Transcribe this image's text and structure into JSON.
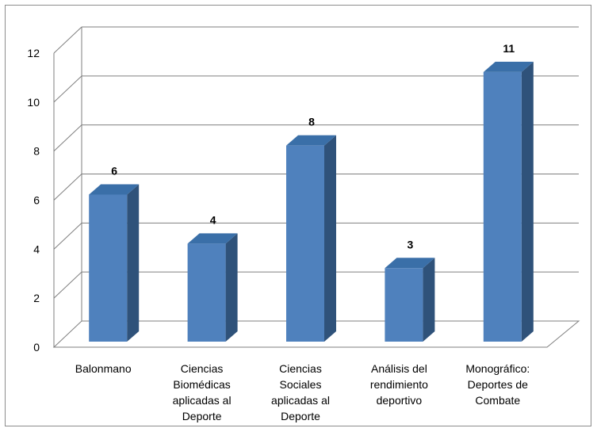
{
  "chart_data": {
    "type": "bar",
    "categories": [
      "Balonmano",
      "Ciencias Biomédicas aplicadas al Deporte",
      "Ciencias Sociales aplicadas al Deporte",
      "Análisis del rendimiento deportivo",
      "Monográfico: Deportes de Combate"
    ],
    "category_lines": [
      [
        "Balonmano"
      ],
      [
        "Ciencias",
        "Biomédicas",
        "aplicadas al",
        "Deporte"
      ],
      [
        "Ciencias",
        "Sociales",
        "aplicadas al",
        "Deporte"
      ],
      [
        "Análisis del",
        "rendimiento",
        "deportivo"
      ],
      [
        "Monográfico:",
        "Deportes de",
        "Combate"
      ]
    ],
    "values": [
      6,
      4,
      8,
      3,
      11
    ],
    "data_labels": [
      "6",
      "4",
      "8",
      "3",
      "11"
    ],
    "yticks": [
      "0",
      "2",
      "4",
      "6",
      "8",
      "10",
      "12"
    ],
    "ylim": [
      0,
      12
    ],
    "title": "",
    "xlabel": "",
    "ylabel": "",
    "grid": true,
    "legend": "none",
    "style": "3d-column",
    "colors": {
      "bar_front": "#4f81bd",
      "bar_top": "#3a6fa8",
      "bar_side": "#2f527a",
      "grid": "#7f7f7f"
    }
  }
}
